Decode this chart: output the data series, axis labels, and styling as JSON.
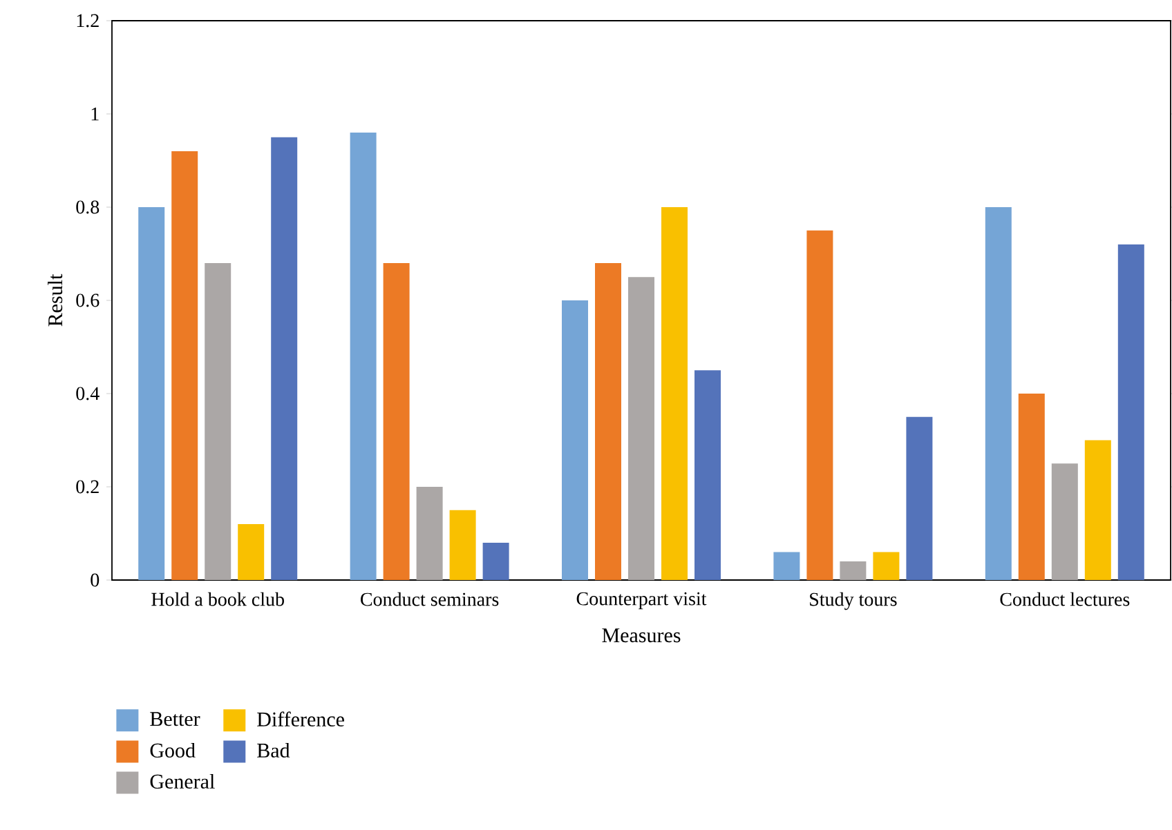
{
  "chart_data": {
    "type": "bar",
    "xlabel": "Measures",
    "ylabel": "Result",
    "categories": [
      "Hold a book club",
      "Conduct seminars",
      "Counterpart visit",
      "Study tours",
      "Conduct lectures"
    ],
    "series": [
      {
        "name": "Better",
        "color": "#75a5d6",
        "values": [
          0.8,
          0.96,
          0.6,
          0.06,
          0.8
        ]
      },
      {
        "name": "Good",
        "color": "#ec7a25",
        "values": [
          0.92,
          0.68,
          0.68,
          0.75,
          0.4
        ]
      },
      {
        "name": "General",
        "color": "#aba7a6",
        "values": [
          0.68,
          0.2,
          0.65,
          0.04,
          0.25
        ]
      },
      {
        "name": "Difference",
        "color": "#f9c000",
        "values": [
          0.12,
          0.15,
          0.8,
          0.06,
          0.3
        ]
      },
      {
        "name": "Bad",
        "color": "#5473ba",
        "values": [
          0.95,
          0.08,
          0.45,
          0.35,
          0.72
        ]
      }
    ],
    "ylim": [
      0,
      1.2
    ],
    "yticks": [
      0,
      0.2,
      0.4,
      0.6,
      0.8,
      1,
      1.2
    ],
    "legend": "bottom"
  }
}
